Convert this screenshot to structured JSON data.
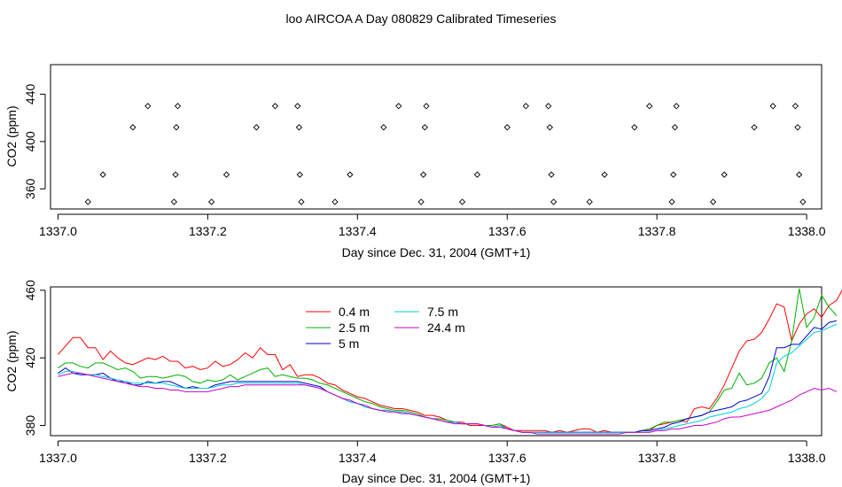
{
  "page_title": "loo AIRCOA A  Day 080829  Calibrated Timeseries",
  "chart_data": [
    {
      "type": "scatter",
      "xlabel": "Day since Dec. 31, 2004 (GMT+1)",
      "ylabel": "CO2 (ppm)",
      "xlim": [
        1336.99,
        1338.02
      ],
      "ylim": [
        343,
        465
      ],
      "x_ticks": [
        "1337.0",
        "1337.2",
        "1337.4",
        "1337.6",
        "1337.8",
        "1338.0"
      ],
      "y_ticks": [
        "360",
        "400",
        "440"
      ],
      "series": [
        {
          "marker": "diamond",
          "points": [
            [
              1337.04,
              349
            ],
            [
              1337.06,
              372
            ],
            [
              1337.1,
              412
            ],
            [
              1337.12,
              430
            ],
            [
              1337.155,
              349
            ],
            [
              1337.157,
              372
            ],
            [
              1337.158,
              412
            ],
            [
              1337.16,
              430
            ],
            [
              1337.205,
              349
            ],
            [
              1337.225,
              372
            ],
            [
              1337.265,
              412
            ],
            [
              1337.29,
              430
            ],
            [
              1337.32,
              430
            ],
            [
              1337.322,
              412
            ],
            [
              1337.323,
              372
            ],
            [
              1337.325,
              349
            ],
            [
              1337.37,
              349
            ],
            [
              1337.39,
              372
            ],
            [
              1337.435,
              412
            ],
            [
              1337.455,
              430
            ],
            [
              1337.485,
              349
            ],
            [
              1337.488,
              372
            ],
            [
              1337.49,
              412
            ],
            [
              1337.492,
              430
            ],
            [
              1337.54,
              349
            ],
            [
              1337.56,
              372
            ],
            [
              1337.6,
              412
            ],
            [
              1337.625,
              430
            ],
            [
              1337.655,
              430
            ],
            [
              1337.657,
              412
            ],
            [
              1337.659,
              372
            ],
            [
              1337.662,
              349
            ],
            [
              1337.71,
              349
            ],
            [
              1337.73,
              372
            ],
            [
              1337.77,
              412
            ],
            [
              1337.79,
              430
            ],
            [
              1337.82,
              349
            ],
            [
              1337.822,
              372
            ],
            [
              1337.824,
              412
            ],
            [
              1337.826,
              430
            ],
            [
              1337.875,
              349
            ],
            [
              1337.89,
              372
            ],
            [
              1337.93,
              412
            ],
            [
              1337.955,
              430
            ],
            [
              1337.985,
              430
            ],
            [
              1337.988,
              412
            ],
            [
              1337.99,
              372
            ],
            [
              1337.995,
              349
            ]
          ]
        }
      ]
    },
    {
      "type": "line",
      "xlabel": "Day since Dec. 31, 2004 (GMT+1)",
      "ylabel": "CO2 (ppm)",
      "xlim": [
        1336.99,
        1338.02
      ],
      "ylim": [
        374,
        462
      ],
      "x_ticks": [
        "1337.0",
        "1337.2",
        "1337.4",
        "1337.6",
        "1337.8",
        "1338.0"
      ],
      "y_ticks": [
        "380",
        "420",
        "460"
      ],
      "legend_position": "top-left",
      "x_start": 1337.0,
      "x_step": 0.01,
      "series": [
        {
          "name": "0.4 m",
          "color": "#ff0000",
          "values": [
            422,
            427,
            432,
            432,
            426,
            426,
            419,
            424,
            420,
            417,
            416,
            418,
            420,
            419,
            421,
            418,
            418,
            414,
            415,
            413,
            414,
            418,
            415,
            416,
            419,
            423,
            420,
            426,
            422,
            422,
            413,
            416,
            409,
            410,
            410,
            408,
            405,
            404,
            401,
            399,
            397,
            396,
            394,
            392,
            391,
            390,
            390,
            389,
            388,
            386,
            386,
            385,
            383,
            382,
            382,
            380,
            380,
            380,
            380,
            381,
            379,
            377,
            377,
            377,
            377,
            377,
            376,
            377,
            376,
            377,
            378,
            378,
            376,
            377,
            376,
            376,
            376,
            376,
            377,
            377,
            380,
            381,
            382,
            383,
            382,
            390,
            391,
            390,
            396,
            404,
            414,
            424,
            430,
            431,
            435,
            443,
            452,
            450,
            430,
            440,
            446,
            449,
            444,
            451,
            454,
            462
          ]
        },
        {
          "name": "2.5 m",
          "color": "#00b000",
          "values": [
            414,
            417,
            417,
            415,
            414,
            417,
            417,
            415,
            413,
            414,
            412,
            408,
            409,
            409,
            408,
            409,
            410,
            409,
            406,
            405,
            407,
            406,
            407,
            410,
            407,
            409,
            411,
            413,
            414,
            409,
            410,
            409,
            408,
            408,
            407,
            405,
            404,
            402,
            400,
            398,
            396,
            394,
            393,
            391,
            390,
            389,
            389,
            388,
            387,
            385,
            384,
            384,
            383,
            382,
            381,
            381,
            381,
            380,
            380,
            381,
            378,
            377,
            376,
            376,
            376,
            376,
            376,
            376,
            376,
            376,
            376,
            376,
            376,
            376,
            376,
            376,
            376,
            376,
            377,
            378,
            380,
            382,
            382,
            383,
            384,
            385,
            386,
            388,
            394,
            401,
            402,
            411,
            404,
            405,
            408,
            417,
            420,
            412,
            430,
            461,
            438,
            444,
            457,
            450,
            445
          ]
        },
        {
          "name": "5 m",
          "color": "#0000cc",
          "values": [
            411,
            414,
            411,
            410,
            410,
            410,
            411,
            408,
            406,
            406,
            404,
            404,
            406,
            405,
            406,
            406,
            404,
            402,
            403,
            402,
            402,
            404,
            405,
            406,
            406,
            406,
            406,
            406,
            406,
            406,
            406,
            406,
            406,
            405,
            404,
            403,
            400,
            398,
            396,
            394,
            393,
            391,
            390,
            389,
            389,
            388,
            388,
            387,
            386,
            385,
            384,
            383,
            382,
            382,
            381,
            381,
            381,
            380,
            379,
            380,
            378,
            377,
            376,
            376,
            376,
            376,
            376,
            376,
            376,
            376,
            376,
            376,
            376,
            376,
            376,
            376,
            376,
            376,
            377,
            377,
            378,
            379,
            381,
            382,
            384,
            385,
            386,
            388,
            389,
            390,
            391,
            394,
            395,
            397,
            399,
            409,
            426,
            426,
            428,
            428,
            433,
            438,
            437,
            441,
            442
          ]
        },
        {
          "name": "7.5 m",
          "color": "#00d0d0",
          "values": [
            410,
            412,
            412,
            411,
            410,
            410,
            409,
            408,
            407,
            406,
            405,
            405,
            405,
            405,
            405,
            404,
            403,
            402,
            402,
            402,
            402,
            403,
            404,
            404,
            405,
            405,
            405,
            405,
            405,
            405,
            405,
            405,
            405,
            404,
            403,
            402,
            400,
            398,
            396,
            394,
            393,
            391,
            390,
            389,
            389,
            388,
            388,
            387,
            386,
            385,
            384,
            383,
            382,
            382,
            381,
            381,
            381,
            380,
            379,
            380,
            378,
            377,
            376,
            376,
            376,
            376,
            376,
            376,
            376,
            376,
            376,
            376,
            376,
            376,
            376,
            376,
            376,
            376,
            376,
            376,
            377,
            378,
            379,
            380,
            381,
            382,
            383,
            385,
            386,
            387,
            388,
            390,
            391,
            393,
            396,
            401,
            417,
            421,
            423,
            427,
            431,
            435,
            436,
            438,
            440
          ]
        },
        {
          "name": "24.4 m",
          "color": "#cc00cc",
          "values": [
            409,
            410,
            411,
            411,
            410,
            409,
            408,
            407,
            406,
            405,
            404,
            403,
            403,
            402,
            402,
            401,
            401,
            400,
            400,
            400,
            400,
            401,
            402,
            403,
            403,
            404,
            404,
            404,
            404,
            404,
            404,
            404,
            404,
            404,
            403,
            402,
            400,
            398,
            396,
            395,
            393,
            392,
            390,
            389,
            388,
            388,
            387,
            387,
            386,
            385,
            384,
            383,
            382,
            381,
            381,
            381,
            381,
            380,
            379,
            379,
            378,
            377,
            376,
            376,
            375,
            375,
            375,
            375,
            375,
            375,
            375,
            375,
            375,
            375,
            375,
            375,
            376,
            376,
            376,
            376,
            377,
            377,
            378,
            378,
            379,
            380,
            380,
            381,
            382,
            384,
            385,
            385,
            386,
            387,
            388,
            389,
            391,
            393,
            395,
            398,
            400,
            402,
            401,
            402,
            400
          ]
        }
      ]
    }
  ]
}
